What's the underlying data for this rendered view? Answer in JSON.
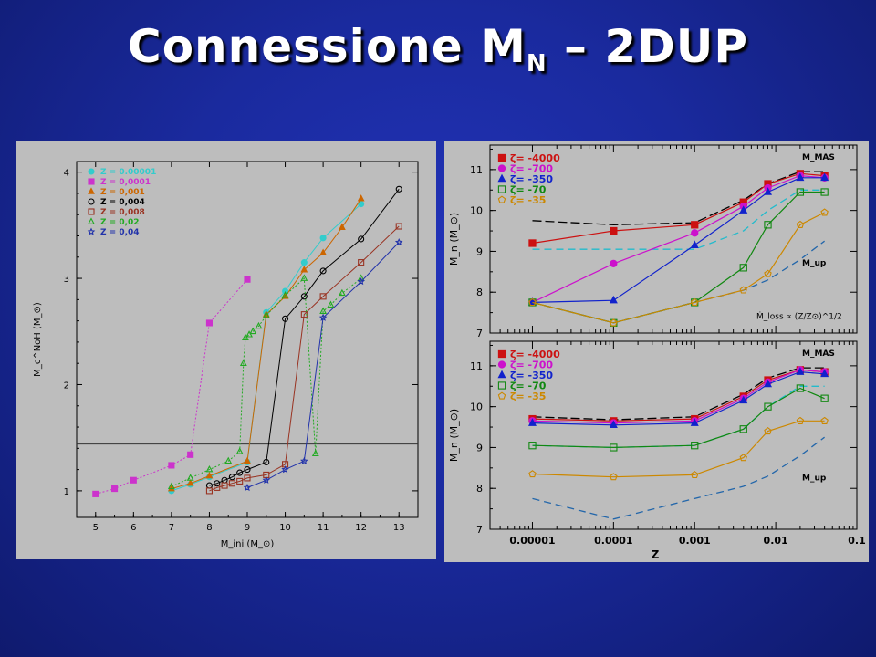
{
  "title": {
    "main": "Connessione M",
    "sub": "N",
    "rest": " – 2DUP"
  },
  "chart_data": [
    {
      "type": "line",
      "xlabel": "M_ini (M_⊙)",
      "ylabel": "M_c^NoH (M_⊙)",
      "xlim": [
        4.5,
        13.5
      ],
      "ylim": [
        0.75,
        4.1
      ],
      "xticks": [
        5,
        6,
        7,
        8,
        9,
        10,
        11,
        12,
        13
      ],
      "yticks": [
        1,
        2,
        3,
        4
      ],
      "hline": 1.44,
      "series": [
        {
          "name": "Z = 0.00001",
          "color": "#33cccc",
          "marker": "circle",
          "filled": true,
          "x": [
            7,
            7.5,
            8,
            9,
            9.5,
            10,
            10.5,
            11,
            12
          ],
          "y": [
            1.0,
            1.06,
            1.13,
            1.27,
            2.68,
            2.88,
            3.15,
            3.38,
            3.7
          ]
        },
        {
          "name": "Z = 0,0001",
          "color": "#cc33cc",
          "marker": "square",
          "filled": true,
          "x": [
            5,
            5.5,
            6,
            7,
            7.5,
            8,
            9
          ],
          "y": [
            0.97,
            1.02,
            1.1,
            1.24,
            1.34,
            2.58,
            2.99
          ]
        },
        {
          "name": "Z = 0,001",
          "color": "#cc6600",
          "marker": "triangle",
          "filled": true,
          "x": [
            7,
            7.5,
            8,
            9,
            9.5,
            10,
            10.5,
            11,
            11.5,
            12
          ],
          "y": [
            1.02,
            1.07,
            1.14,
            1.28,
            2.66,
            2.83,
            3.08,
            3.24,
            3.48,
            3.75
          ]
        },
        {
          "name": "Z = 0,004",
          "color": "#000000",
          "marker": "circle",
          "filled": false,
          "x": [
            8,
            8.2,
            8.4,
            8.6,
            8.8,
            9,
            9.5,
            10,
            10.5,
            11,
            12,
            13
          ],
          "y": [
            1.05,
            1.07,
            1.1,
            1.13,
            1.17,
            1.2,
            1.27,
            2.62,
            2.83,
            3.07,
            3.37,
            3.84
          ]
        },
        {
          "name": "Z = 0,008",
          "color": "#993322",
          "marker": "square",
          "filled": false,
          "x": [
            8,
            8.2,
            8.4,
            8.6,
            8.8,
            9,
            9.5,
            10,
            10.5,
            11,
            12,
            13
          ],
          "y": [
            1.0,
            1.03,
            1.05,
            1.07,
            1.09,
            1.12,
            1.15,
            1.25,
            2.66,
            2.83,
            3.15,
            3.49
          ]
        },
        {
          "name": "Z = 0,02",
          "color": "#22aa22",
          "marker": "triangle",
          "filled": false,
          "x": [
            7,
            7.5,
            8,
            8.5,
            8.8,
            8.9,
            8.95,
            9.05,
            9.15,
            9.3,
            9.5,
            10,
            10.5,
            10.8,
            11,
            11.2,
            11.5,
            12
          ],
          "y": [
            1.04,
            1.12,
            1.2,
            1.28,
            1.37,
            2.2,
            2.44,
            2.47,
            2.5,
            2.55,
            2.65,
            2.84,
            3.0,
            1.35,
            2.69,
            2.75,
            2.86,
            3.0
          ]
        },
        {
          "name": "Z = 0,04",
          "color": "#2233aa",
          "marker": "star",
          "filled": false,
          "x": [
            9,
            9.5,
            10,
            10.5,
            11,
            12,
            13
          ],
          "y": [
            1.03,
            1.1,
            1.2,
            1.28,
            2.63,
            2.97,
            3.34
          ]
        }
      ]
    },
    {
      "type": "line",
      "xlabel": "Z",
      "ylabel": "M_n (M_⊙)",
      "xscale": "log",
      "xlim": [
        3e-06,
        0.1
      ],
      "xticks": [
        1e-05,
        0.0001,
        0.001,
        0.01,
        0.1
      ],
      "xticklabels": [
        "0.00001",
        "0.0001",
        "0.001",
        "0.01",
        "0.1"
      ],
      "panels": [
        {
          "ylim": [
            7,
            11.6
          ],
          "yticks": [
            7,
            8,
            9,
            10,
            11
          ],
          "annotation_mmas": "M_MAS",
          "annotation_mup": "M_up",
          "annotation_formula": "Ṁ_loss ∝ (Z/Z⊙)^1/2",
          "series": [
            {
              "name": "ζ= -4000",
              "color": "#cc1111",
              "marker": "square",
              "filled": true,
              "x": [
                1e-05,
                0.0001,
                0.001,
                0.004,
                0.008,
                0.02,
                0.04
              ],
              "y": [
                9.2,
                9.5,
                9.65,
                10.2,
                10.65,
                10.9,
                10.85
              ]
            },
            {
              "name": "ζ= -700",
              "color": "#cc11cc",
              "marker": "circle",
              "filled": true,
              "x": [
                1e-05,
                0.0001,
                0.001,
                0.004,
                0.008,
                0.02,
                0.04
              ],
              "y": [
                7.75,
                8.7,
                9.45,
                10.1,
                10.55,
                10.85,
                10.8
              ]
            },
            {
              "name": "ζ= -350",
              "color": "#1122cc",
              "marker": "triangle",
              "filled": true,
              "x": [
                1e-05,
                0.0001,
                0.001,
                0.004,
                0.008,
                0.02,
                0.04
              ],
              "y": [
                7.75,
                7.8,
                9.15,
                10.0,
                10.45,
                10.8,
                10.8
              ]
            },
            {
              "name": "ζ= -70",
              "color": "#118811",
              "marker": "square",
              "filled": false,
              "x": [
                1e-05,
                0.0001,
                0.001,
                0.004,
                0.008,
                0.02,
                0.04
              ],
              "y": [
                7.75,
                7.25,
                7.75,
                8.6,
                9.65,
                10.45,
                10.45
              ]
            },
            {
              "name": "ζ= -35",
              "color": "#cc8800",
              "marker": "pentagon",
              "filled": false,
              "x": [
                1e-05,
                0.0001,
                0.001,
                0.004,
                0.008,
                0.02,
                0.04
              ],
              "y": [
                7.75,
                7.25,
                7.75,
                8.05,
                8.45,
                9.65,
                9.95
              ]
            }
          ],
          "dashed": [
            {
              "color": "#000000",
              "x": [
                1e-05,
                0.0001,
                0.001,
                0.004,
                0.008,
                0.02,
                0.04
              ],
              "y": [
                9.75,
                9.65,
                9.7,
                10.25,
                10.65,
                10.95,
                10.95
              ]
            },
            {
              "color": "#22bbcc",
              "x": [
                1e-05,
                0.0001,
                0.001,
                0.004,
                0.008,
                0.02,
                0.04
              ],
              "y": [
                9.05,
                9.05,
                9.05,
                9.5,
                10.0,
                10.5,
                10.5
              ]
            },
            {
              "color": "#2266aa",
              "x": [
                1e-05,
                0.0001,
                0.001,
                0.004,
                0.008,
                0.02,
                0.04
              ],
              "y": [
                7.75,
                7.25,
                7.75,
                8.05,
                8.3,
                8.8,
                9.25
              ]
            }
          ]
        },
        {
          "ylim": [
            7,
            11.6
          ],
          "yticks": [
            7,
            8,
            9,
            10,
            11
          ],
          "annotation_mmas": "M_MAS",
          "annotation_mup": "M_up",
          "series": [
            {
              "name": "ζ= -4000",
              "color": "#cc1111",
              "marker": "square",
              "filled": true,
              "x": [
                1e-05,
                0.0001,
                0.001,
                0.004,
                0.008,
                0.02,
                0.04
              ],
              "y": [
                9.7,
                9.65,
                9.7,
                10.25,
                10.65,
                10.9,
                10.85
              ]
            },
            {
              "name": "ζ= -700",
              "color": "#cc11cc",
              "marker": "circle",
              "filled": true,
              "x": [
                1e-05,
                0.0001,
                0.001,
                0.004,
                0.008,
                0.02,
                0.04
              ],
              "y": [
                9.65,
                9.6,
                9.65,
                10.2,
                10.6,
                10.9,
                10.85
              ]
            },
            {
              "name": "ζ= -350",
              "color": "#1122cc",
              "marker": "triangle",
              "filled": true,
              "x": [
                1e-05,
                0.0001,
                0.001,
                0.004,
                0.008,
                0.02,
                0.04
              ],
              "y": [
                9.6,
                9.55,
                9.6,
                10.15,
                10.55,
                10.85,
                10.8
              ]
            },
            {
              "name": "ζ= -70",
              "color": "#118811",
              "marker": "square",
              "filled": false,
              "x": [
                1e-05,
                0.0001,
                0.001,
                0.004,
                0.008,
                0.02,
                0.04
              ],
              "y": [
                9.05,
                9.0,
                9.05,
                9.45,
                10.0,
                10.45,
                10.2
              ]
            },
            {
              "name": "ζ= -35",
              "color": "#cc8800",
              "marker": "pentagon",
              "filled": false,
              "x": [
                1e-05,
                0.0001,
                0.001,
                0.004,
                0.008,
                0.02,
                0.04
              ],
              "y": [
                8.35,
                8.28,
                8.33,
                8.75,
                9.4,
                9.65,
                9.65
              ]
            }
          ],
          "dashed": [
            {
              "color": "#000000",
              "x": [
                1e-05,
                0.0001,
                0.001,
                0.004,
                0.008,
                0.02,
                0.04
              ],
              "y": [
                9.75,
                9.68,
                9.75,
                10.3,
                10.7,
                10.95,
                10.95
              ]
            },
            {
              "color": "#22bbcc",
              "x": [
                1e-05,
                0.0001,
                0.001,
                0.004,
                0.008,
                0.02,
                0.04
              ],
              "y": [
                9.05,
                9.0,
                9.05,
                9.45,
                10.0,
                10.5,
                10.5
              ]
            },
            {
              "color": "#2266aa",
              "x": [
                1e-05,
                0.0001,
                0.001,
                0.004,
                0.008,
                0.02,
                0.04
              ],
              "y": [
                7.75,
                7.25,
                7.75,
                8.05,
                8.3,
                8.8,
                9.25
              ]
            }
          ]
        }
      ]
    }
  ]
}
